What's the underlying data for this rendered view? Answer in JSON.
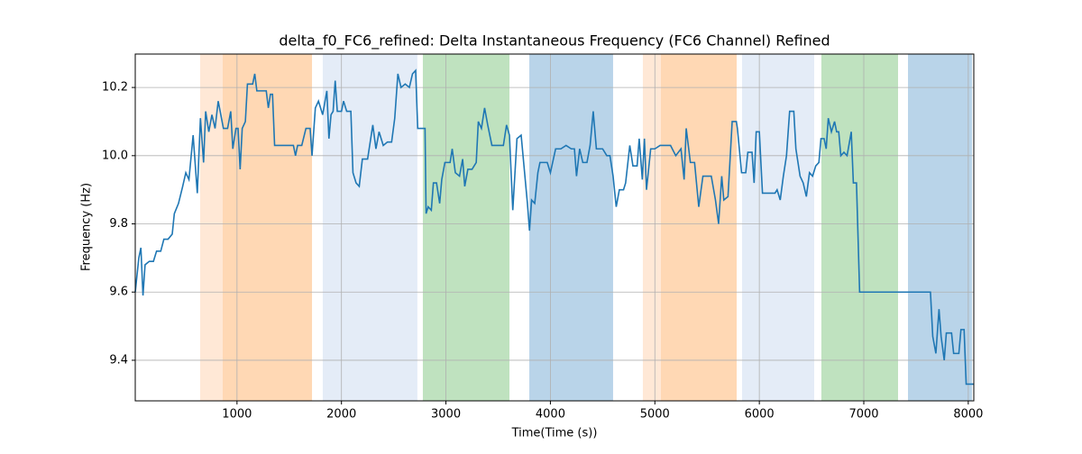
{
  "chart_data": {
    "type": "line",
    "title": "delta_f0_FC6_refined: Delta Instantaneous Frequency (FC6 Channel) Refined",
    "xlabel": "Time(Time (s))",
    "ylabel": "Frequency (Hz)",
    "xlim": [
      26,
      8053
    ],
    "ylim": [
      9.281,
      10.298
    ],
    "xticks": [
      1000,
      2000,
      3000,
      4000,
      5000,
      6000,
      7000,
      8000
    ],
    "yticks": [
      9.4,
      9.6,
      9.8,
      {
        "value": 10,
        "label": "10.0"
      },
      10.2
    ],
    "grid": true,
    "spans": [
      {
        "start": 647,
        "end": 863,
        "color": "#ffe8d6"
      },
      {
        "start": 863,
        "end": 1718,
        "color": "#ffd8b4"
      },
      {
        "start": 1821,
        "end": 2727,
        "color": "#e4ecf7"
      },
      {
        "start": 2779,
        "end": 3608,
        "color": "#bfe2bf"
      },
      {
        "start": 3798,
        "end": 4600,
        "color": "#b9d4e9"
      },
      {
        "start": 4885,
        "end": 5058,
        "color": "#ffe8d6"
      },
      {
        "start": 5058,
        "end": 5783,
        "color": "#ffd8b4"
      },
      {
        "start": 5835,
        "end": 6525,
        "color": "#e4ecf7"
      },
      {
        "start": 6594,
        "end": 7328,
        "color": "#bfe2bf"
      },
      {
        "start": 7423,
        "end": 8036,
        "color": "#b9d4e9"
      }
    ],
    "series": [
      {
        "name": "delta_f0_FC6_refined",
        "color": "#1f77b4",
        "x": [
          26,
          60,
          80,
          100,
          120,
          160,
          200,
          230,
          270,
          300,
          340,
          380,
          400,
          440,
          480,
          510,
          540,
          580,
          620,
          650,
          680,
          700,
          730,
          760,
          790,
          820,
          870,
          910,
          940,
          960,
          990,
          1010,
          1030,
          1050,
          1080,
          1100,
          1150,
          1170,
          1190,
          1280,
          1300,
          1320,
          1340,
          1360,
          1540,
          1560,
          1580,
          1620,
          1660,
          1700,
          1718,
          1750,
          1780,
          1820,
          1860,
          1880,
          1900,
          1920,
          1940,
          1960,
          2000,
          2020,
          2050,
          2090,
          2110,
          2140,
          2170,
          2200,
          2250,
          2300,
          2330,
          2360,
          2400,
          2440,
          2480,
          2510,
          2540,
          2570,
          2610,
          2650,
          2680,
          2710,
          2730,
          2800,
          2810,
          2830,
          2860,
          2880,
          2910,
          2940,
          2960,
          2990,
          3040,
          3060,
          3090,
          3130,
          3160,
          3180,
          3210,
          3250,
          3290,
          3310,
          3340,
          3370,
          3400,
          3440,
          3550,
          3580,
          3608,
          3640,
          3680,
          3720,
          3780,
          3800,
          3820,
          3850,
          3880,
          3900,
          3970,
          4000,
          4050,
          4100,
          4150,
          4200,
          4230,
          4250,
          4280,
          4310,
          4350,
          4380,
          4410,
          4440,
          4500,
          4540,
          4570,
          4600,
          4630,
          4660,
          4700,
          4720,
          4760,
          4790,
          4830,
          4850,
          4880,
          4900,
          4920,
          4960,
          5000,
          5050,
          5150,
          5200,
          5250,
          5280,
          5300,
          5340,
          5380,
          5420,
          5460,
          5540,
          5580,
          5610,
          5640,
          5660,
          5700,
          5740,
          5780,
          5790,
          5830,
          5870,
          5890,
          5930,
          5950,
          5970,
          6000,
          6030,
          6150,
          6170,
          6200,
          6230,
          6260,
          6290,
          6330,
          6350,
          6390,
          6420,
          6450,
          6480,
          6510,
          6540,
          6570,
          6590,
          6620,
          6640,
          6660,
          6690,
          6720,
          6740,
          6760,
          6780,
          6810,
          6840,
          6880,
          6900,
          6930,
          6960,
          7500,
          7638,
          7660,
          7690,
          7720,
          7740,
          7770,
          7790,
          7840,
          7860,
          7910,
          7930,
          7960,
          7980,
          8053
        ],
        "values": [
          9.6,
          9.7,
          9.73,
          9.59,
          9.68,
          9.69,
          9.69,
          9.72,
          9.72,
          9.755,
          9.755,
          9.77,
          9.83,
          9.86,
          9.91,
          9.95,
          9.93,
          10.06,
          9.89,
          10.11,
          9.98,
          10.13,
          10.07,
          10.12,
          10.08,
          10.16,
          10.08,
          10.08,
          10.13,
          10.02,
          10.08,
          10.08,
          9.96,
          10.08,
          10.1,
          10.21,
          10.21,
          10.24,
          10.19,
          10.19,
          10.14,
          10.18,
          10.18,
          10.03,
          10.03,
          10.0,
          10.03,
          10.03,
          10.08,
          10.08,
          10.0,
          10.14,
          10.16,
          10.12,
          10.19,
          10.05,
          10.12,
          10.13,
          10.22,
          10.13,
          10.13,
          10.16,
          10.13,
          10.13,
          9.95,
          9.92,
          9.91,
          9.99,
          9.99,
          10.09,
          10.02,
          10.07,
          10.03,
          10.04,
          10.04,
          10.11,
          10.24,
          10.2,
          10.21,
          10.2,
          10.24,
          10.25,
          10.08,
          10.08,
          9.83,
          9.85,
          9.84,
          9.92,
          9.92,
          9.86,
          9.93,
          9.98,
          9.98,
          10.02,
          9.95,
          9.94,
          9.99,
          9.91,
          9.96,
          9.96,
          9.98,
          10.1,
          10.08,
          10.14,
          10.09,
          10.03,
          10.03,
          10.09,
          10.06,
          9.84,
          10.05,
          10.06,
          9.86,
          9.78,
          9.87,
          9.86,
          9.95,
          9.98,
          9.98,
          9.95,
          10.02,
          10.02,
          10.03,
          10.02,
          10.02,
          9.94,
          10.02,
          9.98,
          9.98,
          10.03,
          10.13,
          10.02,
          10.02,
          10.0,
          10.0,
          9.94,
          9.85,
          9.9,
          9.9,
          9.92,
          10.03,
          9.97,
          9.97,
          10.05,
          9.93,
          10.05,
          9.9,
          10.02,
          10.02,
          10.03,
          10.03,
          10.0,
          10.02,
          9.93,
          10.08,
          9.98,
          9.98,
          9.85,
          9.94,
          9.94,
          9.87,
          9.8,
          9.94,
          9.87,
          9.88,
          10.1,
          10.1,
          10.08,
          9.95,
          9.95,
          10.01,
          10.01,
          9.92,
          10.07,
          10.07,
          9.89,
          9.89,
          9.9,
          9.87,
          9.94,
          10.0,
          10.13,
          10.13,
          10.02,
          9.94,
          9.92,
          9.88,
          9.95,
          9.94,
          9.97,
          9.98,
          10.05,
          10.05,
          10.02,
          10.11,
          10.07,
          10.1,
          10.07,
          10.07,
          10.0,
          10.01,
          10.0,
          10.07,
          9.92,
          9.92,
          9.6,
          9.6,
          9.6,
          9.47,
          9.42,
          9.55,
          9.47,
          9.4,
          9.48,
          9.48,
          9.42,
          9.42,
          9.49,
          9.49,
          9.33,
          9.33
        ]
      }
    ]
  }
}
